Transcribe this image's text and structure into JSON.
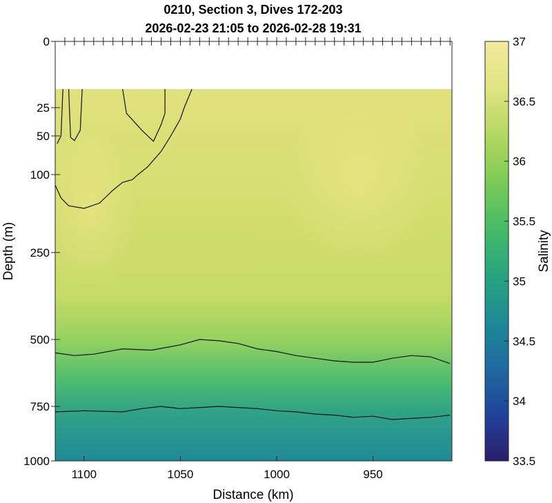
{
  "chart_data": {
    "type": "heatmap",
    "title": "0210, Section 3, Dives 172-203",
    "subtitle": "2026-02-23 21:05 to 2026-02-28 19:31",
    "xlabel": "Distance (km)",
    "ylabel": "Depth (m)",
    "colorbar_label": "Salinity",
    "xlim": [
      1115,
      909
    ],
    "x_reversed": true,
    "ylim": [
      0,
      1000
    ],
    "y_reversed": true,
    "x_ticks": [
      "1100",
      "1050",
      "1000",
      "950"
    ],
    "y_ticks": [
      "0",
      "25",
      "50",
      "100",
      "250",
      "500",
      "750",
      "1000"
    ],
    "colorbar_range": [
      33.5,
      37
    ],
    "colorbar_ticks": [
      "37",
      "36.5",
      "36",
      "35.5",
      "35",
      "34.5",
      "34",
      "33.5"
    ],
    "colormap": [
      "#2a1d6e",
      "#20439a",
      "#1f6aa0",
      "#1f8a96",
      "#2aa480",
      "#47bb66",
      "#7ccb55",
      "#b4d861",
      "#e0e482",
      "#f2e99d"
    ],
    "no_data_depth_m": 18,
    "contour_lines": [
      {
        "label": "36.5 (upper-left)",
        "points": [
          [
            1111,
            18
          ],
          [
            1112,
            50
          ],
          [
            1114,
            60
          ]
        ]
      },
      {
        "label": "36.5 (upper-left 2)",
        "points": [
          [
            1101,
            18
          ],
          [
            1102,
            45
          ],
          [
            1105,
            56
          ],
          [
            1107,
            52
          ],
          [
            1108,
            18
          ]
        ]
      },
      {
        "label": "36.5 (upper-middle)",
        "points": [
          [
            1080,
            18
          ],
          [
            1078,
            30
          ],
          [
            1070,
            45
          ],
          [
            1064,
            57
          ],
          [
            1060,
            40
          ],
          [
            1058,
            30
          ],
          [
            1058,
            18
          ]
        ]
      },
      {
        "label": "36.5 (upper-middle 2)",
        "points": [
          [
            1044,
            18
          ],
          [
            1048,
            25
          ],
          [
            1050,
            35
          ],
          [
            1055,
            50
          ],
          [
            1060,
            70
          ],
          [
            1067,
            90
          ],
          [
            1072,
            100
          ],
          [
            1075,
            110
          ],
          [
            1080,
            115
          ],
          [
            1085,
            130
          ],
          [
            1092,
            155
          ],
          [
            1100,
            165
          ],
          [
            1108,
            160
          ],
          [
            1112,
            145
          ],
          [
            1115,
            120
          ]
        ]
      },
      {
        "label": "36.0",
        "points": [
          [
            1115,
            550
          ],
          [
            1105,
            560
          ],
          [
            1095,
            555
          ],
          [
            1080,
            535
          ],
          [
            1065,
            540
          ],
          [
            1050,
            520
          ],
          [
            1040,
            500
          ],
          [
            1030,
            505
          ],
          [
            1020,
            515
          ],
          [
            1010,
            535
          ],
          [
            1000,
            545
          ],
          [
            990,
            560
          ],
          [
            980,
            570
          ],
          [
            970,
            580
          ],
          [
            960,
            585
          ],
          [
            950,
            585
          ],
          [
            940,
            570
          ],
          [
            930,
            560
          ],
          [
            920,
            565
          ],
          [
            910,
            590
          ]
        ]
      },
      {
        "label": "35.5",
        "points": [
          [
            1115,
            775
          ],
          [
            1100,
            770
          ],
          [
            1080,
            775
          ],
          [
            1070,
            760
          ],
          [
            1060,
            750
          ],
          [
            1050,
            760
          ],
          [
            1040,
            755
          ],
          [
            1030,
            750
          ],
          [
            1020,
            755
          ],
          [
            1010,
            760
          ],
          [
            1000,
            770
          ],
          [
            990,
            775
          ],
          [
            980,
            785
          ],
          [
            970,
            790
          ],
          [
            960,
            800
          ],
          [
            950,
            795
          ],
          [
            940,
            810
          ],
          [
            930,
            805
          ],
          [
            920,
            800
          ],
          [
            910,
            790
          ]
        ]
      }
    ]
  }
}
